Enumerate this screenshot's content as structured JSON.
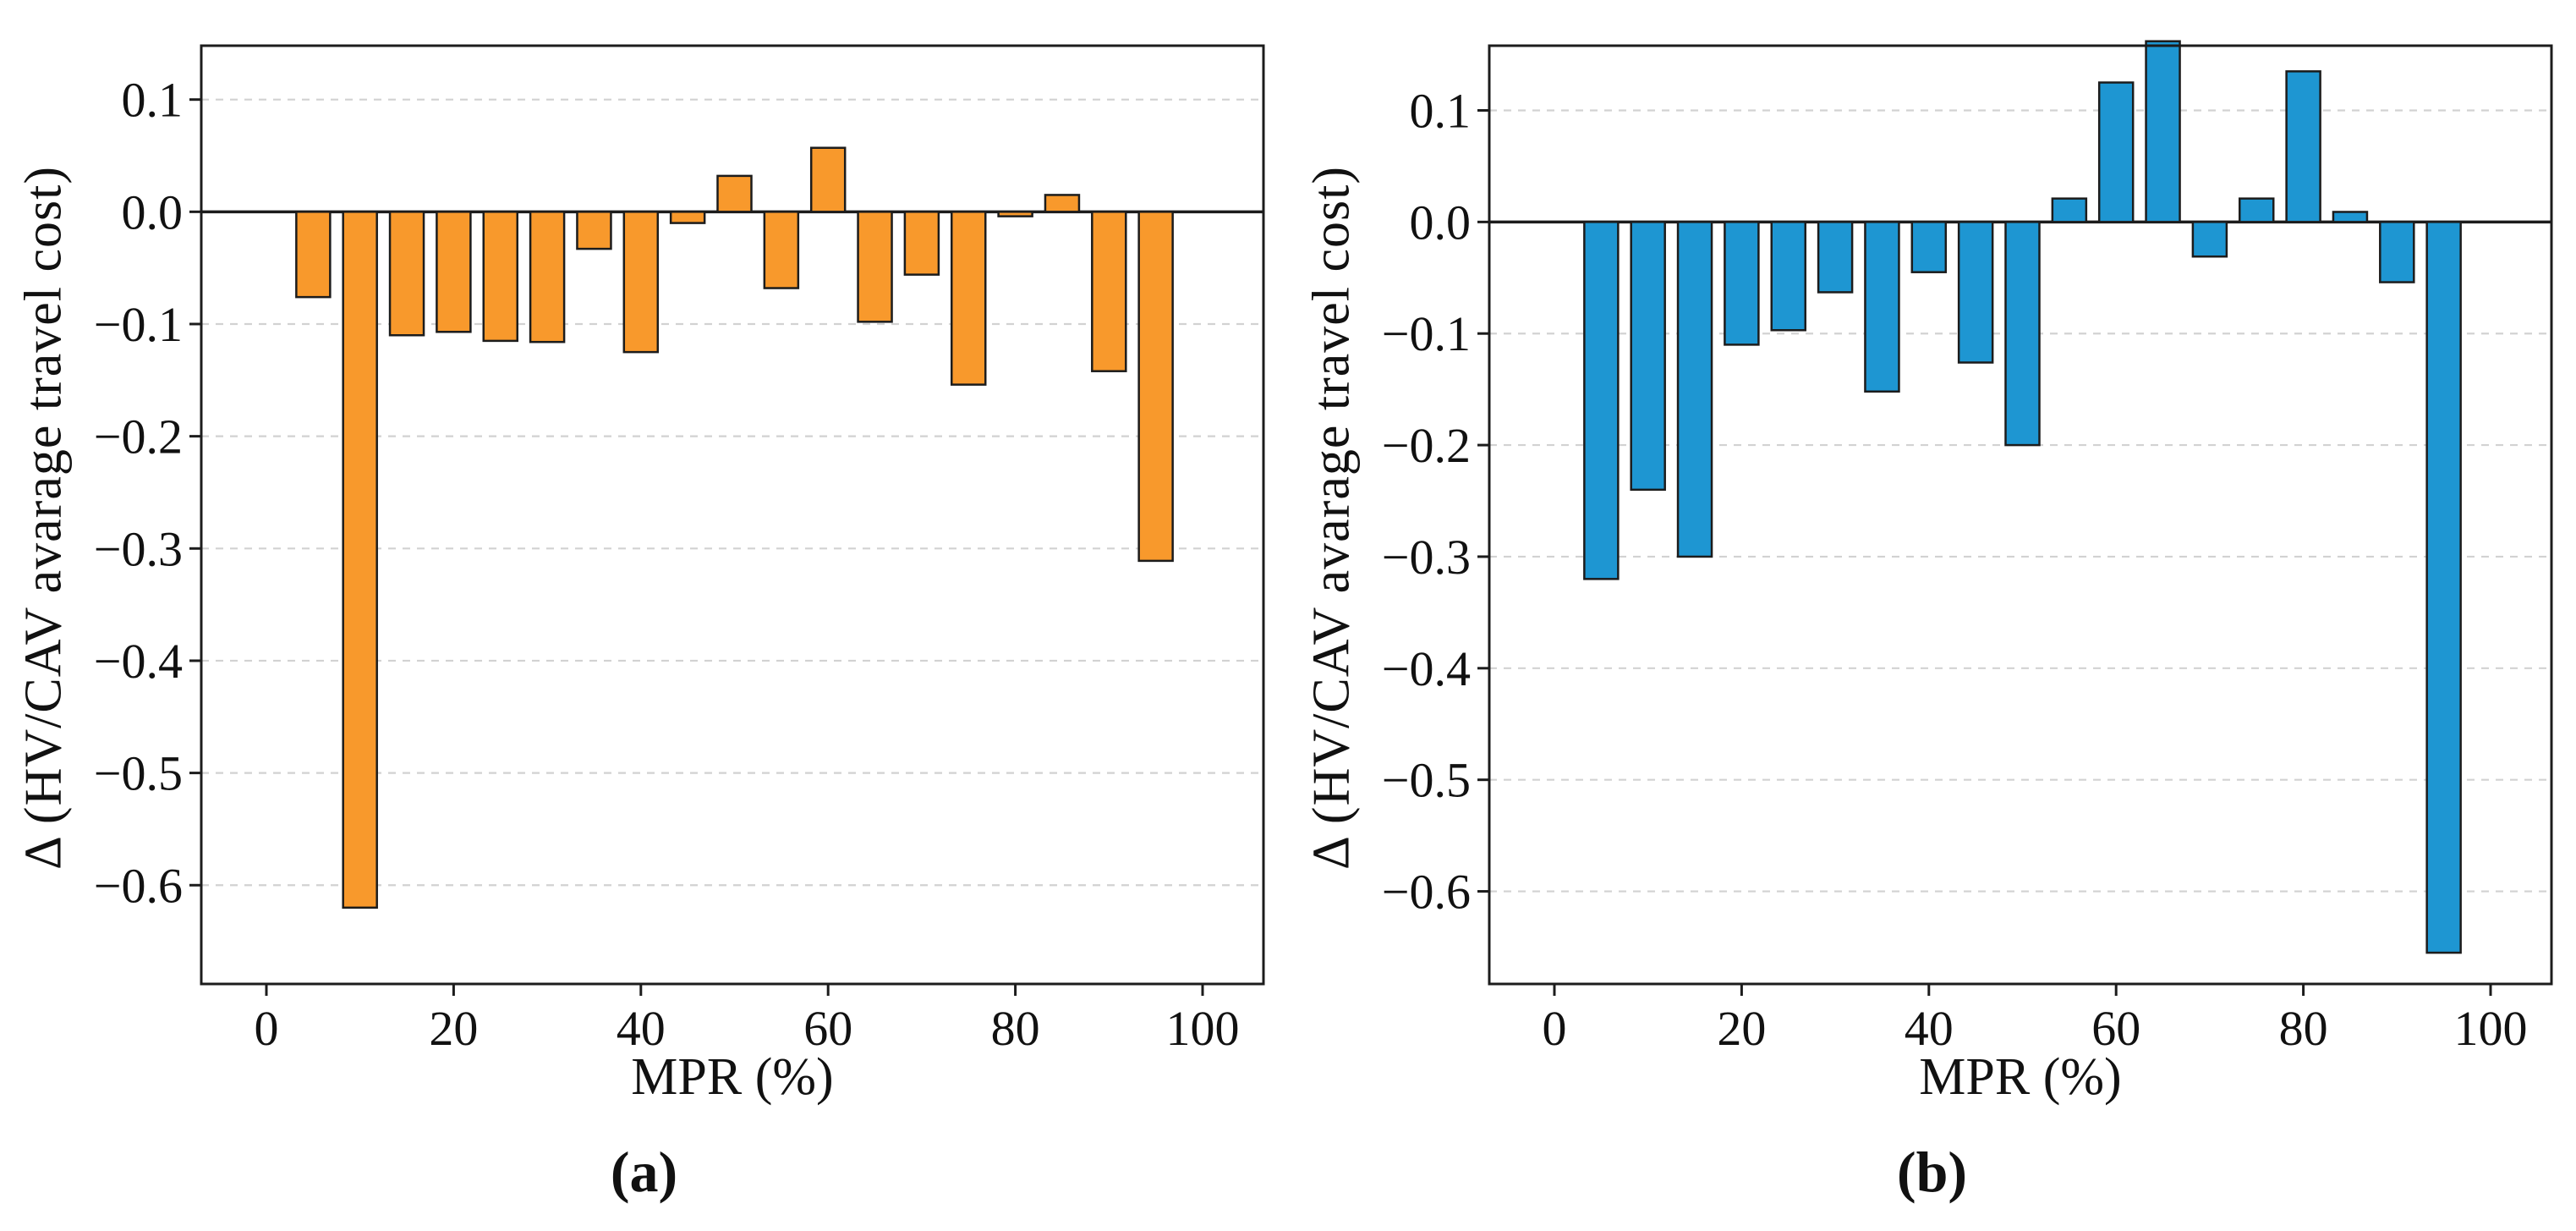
{
  "figure": {
    "background": "#ffffff",
    "text_color": "#111111",
    "grid_color": "#d2d2d2",
    "spine_color": "#1c1c1c"
  },
  "chart_data": [
    {
      "panel": "a",
      "type": "bar",
      "caption": "(a)",
      "xlabel": "MPR (%)",
      "ylabel": "Δ (HV/CAV avarage travel cost)",
      "bar_color": "#F8992C",
      "bar_edge_color": "#1c1c1c",
      "x": [
        5,
        10,
        15,
        20,
        25,
        30,
        35,
        40,
        45,
        50,
        55,
        60,
        65,
        70,
        75,
        80,
        85,
        90,
        95
      ],
      "values": [
        -0.076,
        -0.62,
        -0.11,
        -0.107,
        -0.115,
        -0.116,
        -0.033,
        -0.125,
        -0.01,
        0.032,
        -0.068,
        0.057,
        -0.098,
        -0.056,
        -0.154,
        -0.004,
        0.015,
        -0.142,
        -0.311
      ],
      "xticks": [
        0,
        20,
        40,
        60,
        80,
        100
      ],
      "yticks": [
        0.1,
        0.0,
        -0.1,
        -0.2,
        -0.3,
        -0.4,
        -0.5,
        -0.6
      ],
      "xlim": [
        -7,
        106.5
      ],
      "ylim": [
        -0.688,
        0.148
      ],
      "grid": "horizontal-dashed",
      "zero_line": true,
      "legend": "none"
    },
    {
      "panel": "b",
      "type": "bar",
      "caption": "(b)",
      "xlabel": "MPR (%)",
      "ylabel": "Δ (HV/CAV avarage travel cost)",
      "bar_color": "#1E96D2",
      "bar_edge_color": "#1c1c1c",
      "x": [
        5,
        10,
        15,
        20,
        25,
        30,
        35,
        40,
        45,
        50,
        55,
        60,
        65,
        70,
        75,
        80,
        85,
        90,
        95
      ],
      "values": [
        -0.32,
        -0.24,
        -0.3,
        -0.11,
        -0.097,
        -0.063,
        -0.152,
        -0.045,
        -0.126,
        -0.2,
        0.021,
        0.125,
        0.162,
        -0.031,
        0.021,
        0.135,
        0.009,
        -0.054,
        -0.655
      ],
      "xticks": [
        0,
        20,
        40,
        60,
        80,
        100
      ],
      "yticks": [
        0.1,
        0.0,
        -0.1,
        -0.2,
        -0.3,
        -0.4,
        -0.5,
        -0.6
      ],
      "xlim": [
        -7,
        106.5
      ],
      "ylim": [
        -0.683,
        0.158
      ],
      "grid": "horizontal-dashed",
      "zero_line": true,
      "legend": "none"
    }
  ]
}
